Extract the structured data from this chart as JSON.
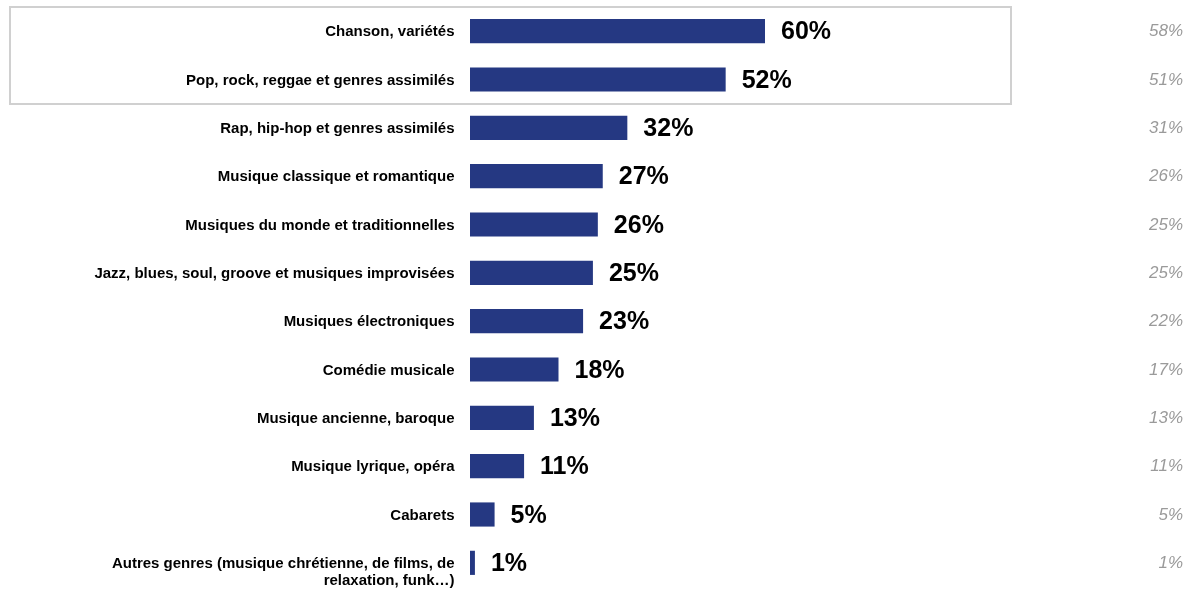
{
  "chart_data": {
    "type": "bar",
    "orientation": "horizontal",
    "categories": [
      "Chanson, variétés",
      "Pop, rock, reggae et genres assimilés",
      "Rap, hip-hop et genres assimilés",
      "Musique classique et romantique",
      "Musiques du monde et traditionnelles",
      "Jazz, blues, soul, groove et musiques improvisées",
      "Musiques électroniques",
      "Comédie musicale",
      "Musique ancienne, baroque",
      "Musique lyrique, opéra",
      "Cabarets",
      "Autres genres (musique chrétienne, de films, de relaxation, funk…)"
    ],
    "values": [
      60,
      52,
      32,
      27,
      26,
      25,
      23,
      18,
      13,
      11,
      5,
      1
    ],
    "value_labels": [
      "60%",
      "52%",
      "32%",
      "27%",
      "26%",
      "25%",
      "23%",
      "18%",
      "13%",
      "11%",
      "5%",
      "1%"
    ],
    "color": "#253882",
    "annotations": [
      "58%",
      "51%",
      "31%",
      "26%",
      "25%",
      "25%",
      "22%",
      "17%",
      "13%",
      "11%",
      "5%",
      "1%"
    ]
  }
}
